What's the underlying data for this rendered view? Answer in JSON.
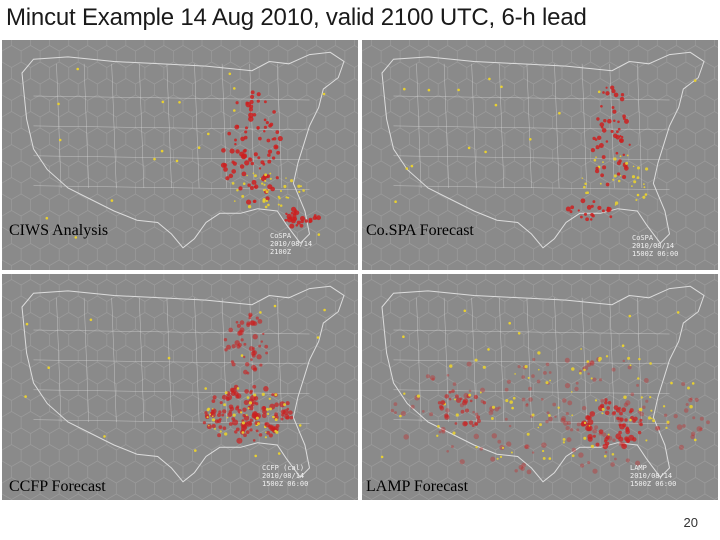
{
  "slide": {
    "title": "Mincut Example 14 Aug 2010, valid 2100 UTC, 6-h lead",
    "page_number": "20"
  },
  "panels": [
    {
      "id": "ciws",
      "label": "CIWS Analysis",
      "stamp": [
        "CoSPA",
        "2010/08/14",
        "2100Z"
      ],
      "overlay": "red-dense"
    },
    {
      "id": "cospa",
      "label": "Co.SPA Forecast",
      "stamp": [
        "CoSPA",
        "2010/08/14",
        "1500Z 06:00"
      ],
      "overlay": "red-sparse"
    },
    {
      "id": "ccfp",
      "label": "CCFP Forecast",
      "stamp": [
        "CCFP (cal)",
        "2010/08/14",
        "1500Z 06:00"
      ],
      "overlay": "red-block"
    },
    {
      "id": "lamp",
      "label": "LAMP Forecast",
      "stamp": [
        "LAMP",
        "2010/08/14",
        "1500Z 06:00"
      ],
      "overlay": "red-wide"
    }
  ],
  "colors": {
    "panel_bg": "#8a8a8a",
    "hex_grid": "#9a9a9a",
    "map_lines": "#dcdcdc",
    "storm": "#cc2020",
    "node": "#e8d030"
  }
}
